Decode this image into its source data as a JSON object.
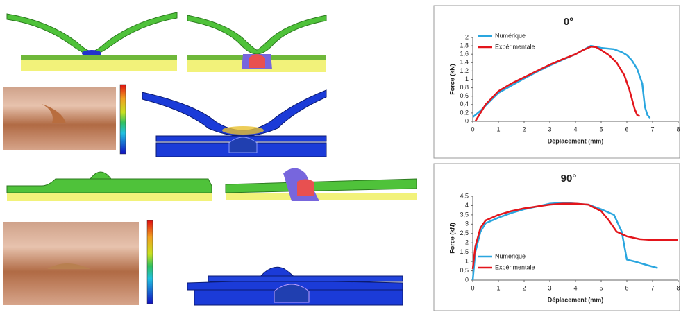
{
  "chart_data": [
    {
      "type": "line",
      "title": "0°",
      "xlabel": "Déplacement (mm)",
      "ylabel": "Force (kN)",
      "xlim": [
        0,
        8
      ],
      "xticks": [
        0,
        1,
        2,
        3,
        4,
        5,
        6,
        7,
        8
      ],
      "ylim": [
        0,
        2
      ],
      "yticks": [
        0,
        {
          "value": 0.2,
          "label": "0,2"
        },
        {
          "value": 0.4,
          "label": "0,4"
        },
        {
          "value": 0.6,
          "label": "0,6"
        },
        {
          "value": 0.8,
          "label": "0,8"
        },
        1,
        {
          "value": 1.2,
          "label": "1,2"
        },
        {
          "value": 1.4,
          "label": "1,4"
        },
        {
          "value": 1.6,
          "label": "1,6"
        },
        {
          "value": 1.8,
          "label": "1,8"
        },
        2
      ],
      "legend": "top-left",
      "series": [
        {
          "name": "Numérique",
          "color": "#2aa6df",
          "x": [
            0,
            0.3,
            0.7,
            1,
            1.5,
            2,
            2.5,
            3,
            3.5,
            4,
            4.3,
            4.6,
            5,
            5.5,
            5.8,
            6,
            6.2,
            6.4,
            6.6,
            6.7,
            6.8,
            6.9
          ],
          "values": [
            0.1,
            0.25,
            0.5,
            0.68,
            0.85,
            1.02,
            1.18,
            1.33,
            1.47,
            1.6,
            1.7,
            1.8,
            1.75,
            1.72,
            1.65,
            1.58,
            1.45,
            1.25,
            0.9,
            0.35,
            0.15,
            0.08
          ]
        },
        {
          "name": "Expérimentale",
          "color": "#e3151b",
          "x": [
            0.1,
            0.5,
            1,
            1.5,
            2,
            2.5,
            3,
            3.5,
            4,
            4.3,
            4.6,
            4.8,
            5,
            5.3,
            5.6,
            5.9,
            6.1,
            6.3,
            6.4,
            6.5
          ],
          "values": [
            0,
            0.4,
            0.72,
            0.9,
            1.05,
            1.2,
            1.35,
            1.48,
            1.6,
            1.7,
            1.78,
            1.77,
            1.7,
            1.58,
            1.4,
            1.1,
            0.75,
            0.3,
            0.15,
            0.12
          ]
        }
      ]
    },
    {
      "type": "line",
      "title": "90°",
      "xlabel": "Déplacement (mm)",
      "ylabel": "Force (kN)",
      "xlim": [
        0,
        8
      ],
      "xticks": [
        0,
        1,
        2,
        3,
        4,
        5,
        6,
        7,
        8
      ],
      "ylim": [
        0,
        4.5
      ],
      "yticks": [
        0,
        {
          "value": 0.5,
          "label": "0,5"
        },
        1,
        {
          "value": 1.5,
          "label": "1,5"
        },
        2,
        {
          "value": 2.5,
          "label": "2,5"
        },
        3,
        {
          "value": 3.5,
          "label": "3,5"
        },
        4,
        {
          "value": 4.5,
          "label": "4,5"
        }
      ],
      "legend": "bottom-left",
      "series": [
        {
          "name": "Numérique",
          "color": "#2aa6df",
          "x": [
            0,
            0.1,
            0.3,
            0.5,
            1,
            1.5,
            2,
            2.5,
            3,
            3.5,
            4,
            4.5,
            5,
            5.5,
            5.8,
            6,
            6.3,
            6.8,
            7.2
          ],
          "values": [
            0,
            1.5,
            2.6,
            3.05,
            3.35,
            3.6,
            3.8,
            3.95,
            4.1,
            4.15,
            4.1,
            4.05,
            3.8,
            3.5,
            2.6,
            1.1,
            1,
            0.8,
            0.65
          ]
        },
        {
          "name": "Expérimentale",
          "color": "#e3151b",
          "x": [
            0,
            0.1,
            0.3,
            0.5,
            1,
            1.5,
            2,
            2.5,
            3,
            3.5,
            4,
            4.5,
            5,
            5.3,
            5.6,
            6,
            6.5,
            7,
            8
          ],
          "values": [
            0.6,
            1.8,
            2.8,
            3.2,
            3.5,
            3.7,
            3.85,
            3.95,
            4.05,
            4.1,
            4.1,
            4.05,
            3.7,
            3.2,
            2.6,
            2.35,
            2.2,
            2.15,
            2.15
          ]
        }
      ]
    }
  ]
}
